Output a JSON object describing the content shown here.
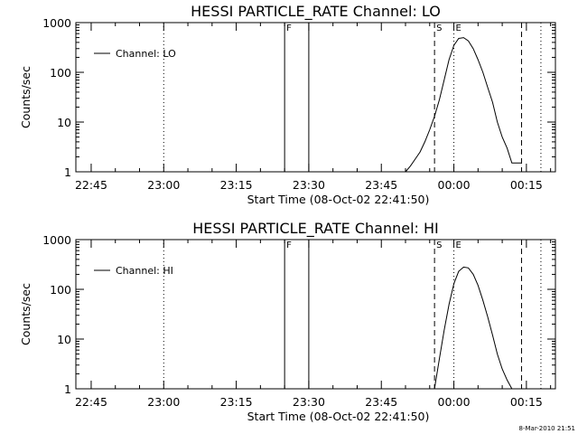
{
  "timestamp": "8-Mar-2010 21:51",
  "chart_data": [
    {
      "type": "line",
      "title": "HESSI PARTICLE_RATE Channel: LO",
      "xlabel": "Start Time (08-Oct-02 22:41:50)",
      "ylabel": "Counts/sec",
      "legend": {
        "label": "Channel: LO",
        "placement": "top-left"
      },
      "y_scale": "log",
      "ylim": [
        1,
        1000
      ],
      "y_ticks": [
        "1",
        "10",
        "100",
        "1000"
      ],
      "xlim": [
        "22:41:50",
        "00:21:00"
      ],
      "x_ticks": [
        "22:45",
        "23:00",
        "23:15",
        "23:30",
        "23:45",
        "00:00",
        "00:15"
      ],
      "vertical_lines": [
        {
          "time": "23:00",
          "style": "dotted",
          "label": ""
        },
        {
          "time": "23:25",
          "style": "solid",
          "label": "F"
        },
        {
          "time": "23:30",
          "style": "solid",
          "label": ""
        },
        {
          "time": "23:56",
          "style": "dashed",
          "label": "S"
        },
        {
          "time": "00:00",
          "style": "dotted",
          "label": "E"
        },
        {
          "time": "00:14",
          "style": "dashed",
          "label": ""
        },
        {
          "time": "00:18",
          "style": "dotted",
          "label": ""
        }
      ],
      "series": [
        {
          "name": "Channel: LO",
          "x": [
            "23:50",
            "23:51",
            "23:52",
            "23:53",
            "23:54",
            "23:55",
            "23:56",
            "23:57",
            "23:58",
            "23:59",
            "00:00",
            "00:01",
            "00:02",
            "00:03",
            "00:04",
            "00:05",
            "00:06",
            "00:07",
            "00:08",
            "00:09",
            "00:10",
            "00:11",
            "00:12",
            "00:13",
            "00:14"
          ],
          "values": [
            1,
            1.3,
            1.8,
            2.5,
            4,
            7,
            13,
            28,
            70,
            180,
            350,
            480,
            500,
            430,
            300,
            180,
            100,
            50,
            25,
            10,
            5,
            3,
            1.5,
            1.5,
            1.5
          ]
        }
      ]
    },
    {
      "type": "line",
      "title": "HESSI PARTICLE_RATE Channel: HI",
      "xlabel": "Start Time (08-Oct-02 22:41:50)",
      "ylabel": "Counts/sec",
      "legend": {
        "label": "Channel: HI",
        "placement": "top-left"
      },
      "y_scale": "log",
      "ylim": [
        1,
        1000
      ],
      "y_ticks": [
        "1",
        "10",
        "100",
        "1000"
      ],
      "xlim": [
        "22:41:50",
        "00:21:00"
      ],
      "x_ticks": [
        "22:45",
        "23:00",
        "23:15",
        "23:30",
        "23:45",
        "00:00",
        "00:15"
      ],
      "vertical_lines": [
        {
          "time": "23:00",
          "style": "dotted",
          "label": ""
        },
        {
          "time": "23:25",
          "style": "solid",
          "label": "F"
        },
        {
          "time": "23:30",
          "style": "solid",
          "label": ""
        },
        {
          "time": "23:56",
          "style": "dashed",
          "label": "S"
        },
        {
          "time": "00:00",
          "style": "dotted",
          "label": "E"
        },
        {
          "time": "00:14",
          "style": "dashed",
          "label": ""
        },
        {
          "time": "00:18",
          "style": "dotted",
          "label": ""
        }
      ],
      "series": [
        {
          "name": "Channel: HI",
          "x": [
            "23:56",
            "23:57",
            "23:58",
            "23:59",
            "00:00",
            "00:01",
            "00:02",
            "00:03",
            "00:04",
            "00:05",
            "00:06",
            "00:07",
            "00:08",
            "00:09",
            "00:10",
            "00:11",
            "00:12"
          ],
          "values": [
            1,
            4,
            15,
            50,
            130,
            230,
            280,
            270,
            200,
            120,
            60,
            28,
            12,
            5,
            2.5,
            1.5,
            1
          ]
        }
      ]
    }
  ]
}
